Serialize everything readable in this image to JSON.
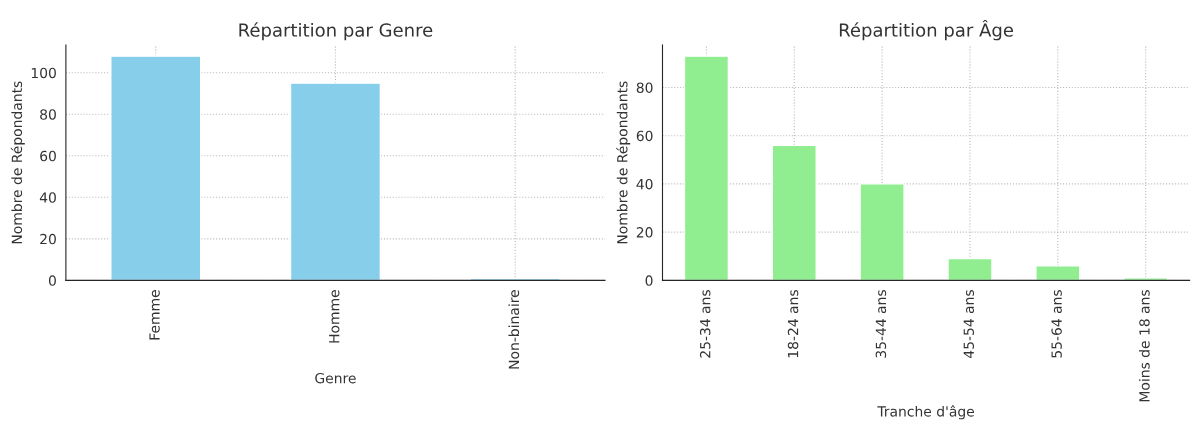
{
  "chart_data": [
    {
      "type": "bar",
      "title": "Répartition par Genre",
      "xlabel": "Genre",
      "ylabel": "Nombre de Répondants",
      "categories": [
        "Femme",
        "Homme",
        "Non-binaire"
      ],
      "values": [
        108,
        95,
        1
      ],
      "color": "#87ceeb",
      "ylim": [
        0,
        113.4
      ],
      "yticks": [
        0,
        20,
        40,
        60,
        80,
        100
      ],
      "grid": true
    },
    {
      "type": "bar",
      "title": "Répartition par Âge",
      "xlabel": "Tranche d'âge",
      "ylabel": "Nombre de Répondants",
      "categories": [
        "25-34 ans",
        "18-24 ans",
        "35-44 ans",
        "45-54 ans",
        "55-64 ans",
        "Moins de 18 ans"
      ],
      "values": [
        93,
        56,
        40,
        9,
        6,
        1
      ],
      "color": "#90ee90",
      "ylim": [
        0,
        97.65
      ],
      "yticks": [
        0,
        20,
        40,
        60,
        80
      ],
      "grid": true
    }
  ]
}
